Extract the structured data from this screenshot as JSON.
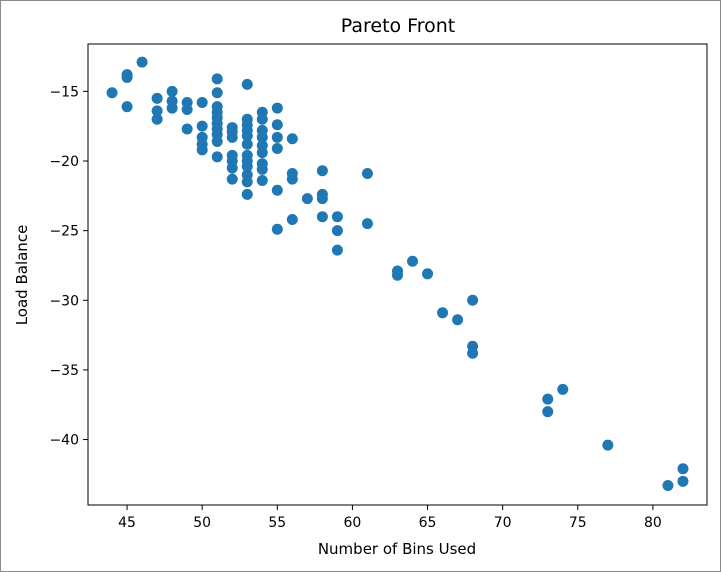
{
  "chart_data": {
    "type": "scatter",
    "title": "Pareto Front",
    "xlabel": "Number of Bins Used",
    "ylabel": "Load Balance",
    "xlim": [
      42.4,
      83.6
    ],
    "ylim": [
      -44.7,
      -11.6
    ],
    "xticks": [
      45,
      50,
      55,
      60,
      65,
      70,
      75,
      80
    ],
    "yticks": [
      -15,
      -20,
      -25,
      -30,
      -35,
      -40
    ],
    "xtick_labels": [
      "45",
      "50",
      "55",
      "60",
      "65",
      "70",
      "75",
      "80"
    ],
    "ytick_labels": [
      "−15",
      "−20",
      "−25",
      "−30",
      "−35",
      "−40"
    ],
    "grid": false,
    "marker_color": "#1f77b4",
    "points": [
      [
        44,
        -15.1
      ],
      [
        45,
        -13.8
      ],
      [
        45,
        -14.0
      ],
      [
        45,
        -16.1
      ],
      [
        46,
        -12.9
      ],
      [
        47,
        -15.5
      ],
      [
        47,
        -16.4
      ],
      [
        47,
        -17.0
      ],
      [
        48,
        -15.0
      ],
      [
        48,
        -15.7
      ],
      [
        48,
        -16.2
      ],
      [
        49,
        -15.8
      ],
      [
        49,
        -16.3
      ],
      [
        49,
        -17.7
      ],
      [
        50,
        -15.8
      ],
      [
        50,
        -17.5
      ],
      [
        50,
        -18.3
      ],
      [
        50,
        -18.8
      ],
      [
        50,
        -19.2
      ],
      [
        51,
        -14.1
      ],
      [
        51,
        -15.1
      ],
      [
        51,
        -16.1
      ],
      [
        51,
        -16.5
      ],
      [
        51,
        -16.9
      ],
      [
        51,
        -17.3
      ],
      [
        51,
        -17.7
      ],
      [
        51,
        -18.1
      ],
      [
        51,
        -18.6
      ],
      [
        51,
        -19.7
      ],
      [
        52,
        -17.6
      ],
      [
        52,
        -17.9
      ],
      [
        52,
        -18.3
      ],
      [
        52,
        -19.6
      ],
      [
        52,
        -20.0
      ],
      [
        52,
        -20.5
      ],
      [
        52,
        -21.3
      ],
      [
        53,
        -14.5
      ],
      [
        53,
        -17.0
      ],
      [
        53,
        -17.4
      ],
      [
        53,
        -17.8
      ],
      [
        53,
        -18.2
      ],
      [
        53,
        -18.8
      ],
      [
        53,
        -19.6
      ],
      [
        53,
        -20.0
      ],
      [
        53,
        -20.4
      ],
      [
        53,
        -21.0
      ],
      [
        53,
        -21.5
      ],
      [
        53,
        -22.4
      ],
      [
        54,
        -16.5
      ],
      [
        54,
        -17.0
      ],
      [
        54,
        -17.8
      ],
      [
        54,
        -18.3
      ],
      [
        54,
        -18.9
      ],
      [
        54,
        -19.4
      ],
      [
        54,
        -20.2
      ],
      [
        54,
        -20.6
      ],
      [
        54,
        -21.4
      ],
      [
        55,
        -16.2
      ],
      [
        55,
        -17.4
      ],
      [
        55,
        -18.3
      ],
      [
        55,
        -19.1
      ],
      [
        55,
        -22.1
      ],
      [
        55,
        -24.9
      ],
      [
        56,
        -18.4
      ],
      [
        56,
        -20.9
      ],
      [
        56,
        -21.3
      ],
      [
        56,
        -24.2
      ],
      [
        57,
        -22.7
      ],
      [
        58,
        -20.7
      ],
      [
        58,
        -22.4
      ],
      [
        58,
        -22.7
      ],
      [
        58,
        -24.0
      ],
      [
        59,
        -24.0
      ],
      [
        59,
        -25.0
      ],
      [
        59,
        -26.4
      ],
      [
        61,
        -20.9
      ],
      [
        61,
        -24.5
      ],
      [
        63,
        -27.9
      ],
      [
        63,
        -28.2
      ],
      [
        64,
        -27.2
      ],
      [
        65,
        -28.1
      ],
      [
        66,
        -30.9
      ],
      [
        67,
        -31.4
      ],
      [
        68,
        -30.0
      ],
      [
        68,
        -33.3
      ],
      [
        68,
        -33.8
      ],
      [
        73,
        -37.1
      ],
      [
        73,
        -38.0
      ],
      [
        74,
        -36.4
      ],
      [
        77,
        -40.4
      ],
      [
        81,
        -43.3
      ],
      [
        82,
        -42.1
      ],
      [
        82,
        -43.0
      ]
    ]
  }
}
